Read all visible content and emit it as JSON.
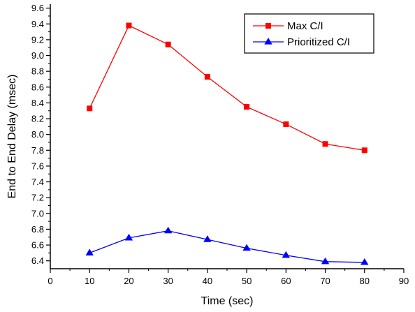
{
  "chart_data": {
    "type": "line",
    "title": "",
    "xlabel": "Time (sec)",
    "ylabel": "End to End Delay (msec)",
    "xlim": [
      0,
      90
    ],
    "ylim": [
      6.3,
      9.65
    ],
    "x_ticks": [
      0,
      10,
      20,
      30,
      40,
      50,
      60,
      70,
      80,
      90
    ],
    "y_ticks": [
      6.4,
      6.6,
      6.8,
      7.0,
      7.2,
      7.4,
      7.6,
      7.8,
      8.0,
      8.2,
      8.4,
      8.6,
      8.8,
      9.0,
      9.2,
      9.4,
      9.6
    ],
    "grid": false,
    "legend_position": "top-right",
    "x": [
      10,
      20,
      30,
      40,
      50,
      60,
      70,
      80
    ],
    "series": [
      {
        "name": "Max C/I",
        "color": "#ff0000",
        "marker": "square",
        "values": [
          8.33,
          9.38,
          9.14,
          8.73,
          8.35,
          8.13,
          7.88,
          7.8
        ]
      },
      {
        "name": "Prioritized C/I",
        "color": "#0000ff",
        "marker": "triangle",
        "values": [
          6.5,
          6.69,
          6.78,
          6.67,
          6.56,
          6.47,
          6.39,
          6.38
        ]
      }
    ]
  }
}
